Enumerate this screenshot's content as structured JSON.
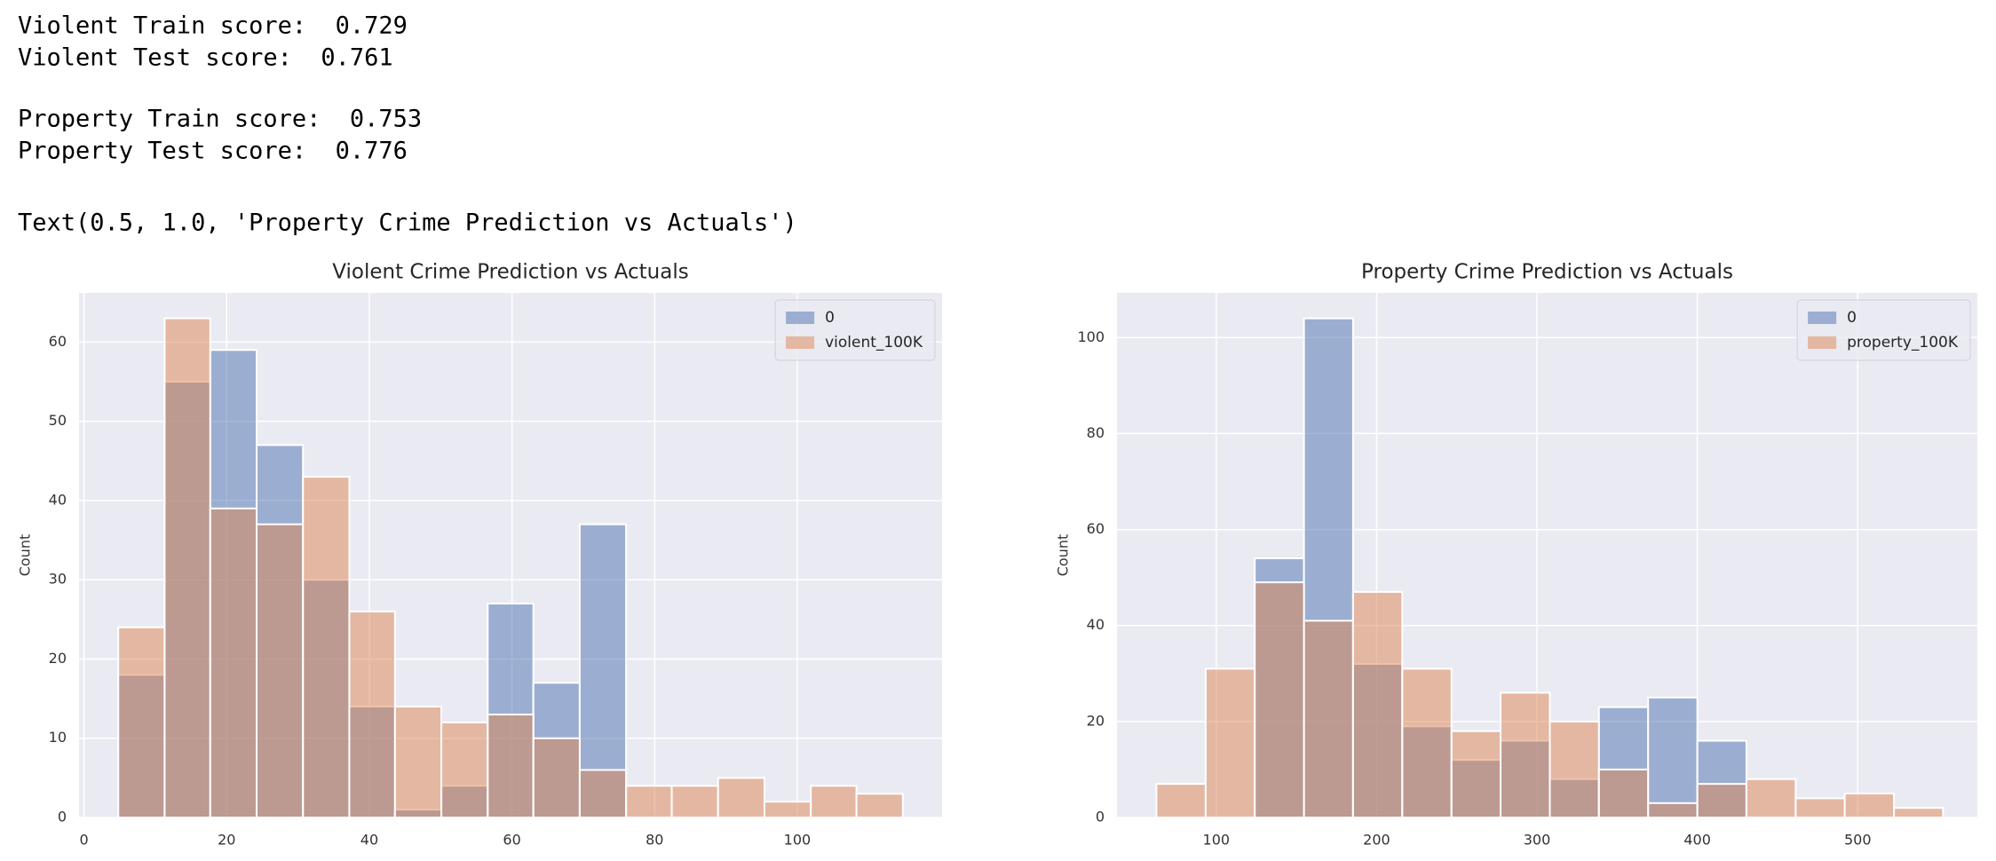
{
  "output_lines": [
    "Violent Train score:  0.729",
    "Violent Test score:  0.761",
    "Property Train score:  0.753",
    "Property Test score:  0.776",
    "Text(0.5, 1.0, 'Property Crime Prediction vs Actuals')"
  ],
  "chart_data": [
    {
      "type": "histogram",
      "title": "Violent Crime Prediction vs Actuals",
      "ylabel": "Count",
      "bins": [
        4.8,
        11.3,
        17.7,
        24.2,
        30.7,
        37.2,
        43.6,
        50.1,
        56.6,
        63.0,
        69.5,
        76.0,
        82.4,
        88.9,
        95.4,
        101.9,
        108.3,
        114.8
      ],
      "series": [
        {
          "name": "0",
          "color": "#4c72b0",
          "values": [
            18,
            55,
            59,
            47,
            30,
            14,
            1,
            4,
            27,
            17,
            37,
            0,
            0,
            0,
            0,
            0,
            0
          ]
        },
        {
          "name": "violent_100K",
          "color": "#dd8452",
          "values": [
            24,
            63,
            39,
            37,
            43,
            26,
            14,
            12,
            13,
            10,
            6,
            4,
            4,
            5,
            2,
            4,
            3
          ]
        }
      ],
      "xlim": [
        -0.7,
        120.3
      ],
      "ylim": [
        0,
        66.2
      ],
      "xticks": [
        0,
        20,
        40,
        60,
        80,
        100
      ],
      "yticks": [
        0,
        10,
        20,
        30,
        40,
        50,
        60
      ],
      "grid": true,
      "legend": "upper right"
    },
    {
      "type": "histogram",
      "title": "Property Crime Prediction vs Actuals",
      "ylabel": "Count",
      "bins": [
        62.7,
        93.4,
        124.0,
        154.7,
        185.3,
        216.0,
        246.7,
        277.3,
        308.0,
        338.6,
        369.3,
        400.0,
        430.6,
        461.3,
        491.9,
        522.6,
        553.2
      ],
      "series": [
        {
          "name": "0",
          "color": "#4c72b0",
          "values": [
            0,
            0,
            54,
            104,
            32,
            19,
            12,
            16,
            8,
            23,
            25,
            16,
            0,
            0,
            0,
            0
          ]
        },
        {
          "name": "property_100K",
          "color": "#dd8452",
          "values": [
            7,
            31,
            49,
            41,
            47,
            31,
            18,
            26,
            20,
            10,
            3,
            7,
            8,
            4,
            5,
            2
          ]
        }
      ],
      "xlim": [
        38.1,
        574.6
      ],
      "ylim": [
        0,
        109.3
      ],
      "xticks": [
        100,
        200,
        300,
        400,
        500
      ],
      "yticks": [
        0,
        20,
        40,
        60,
        80,
        100
      ],
      "grid": true,
      "legend": "upper right"
    }
  ]
}
